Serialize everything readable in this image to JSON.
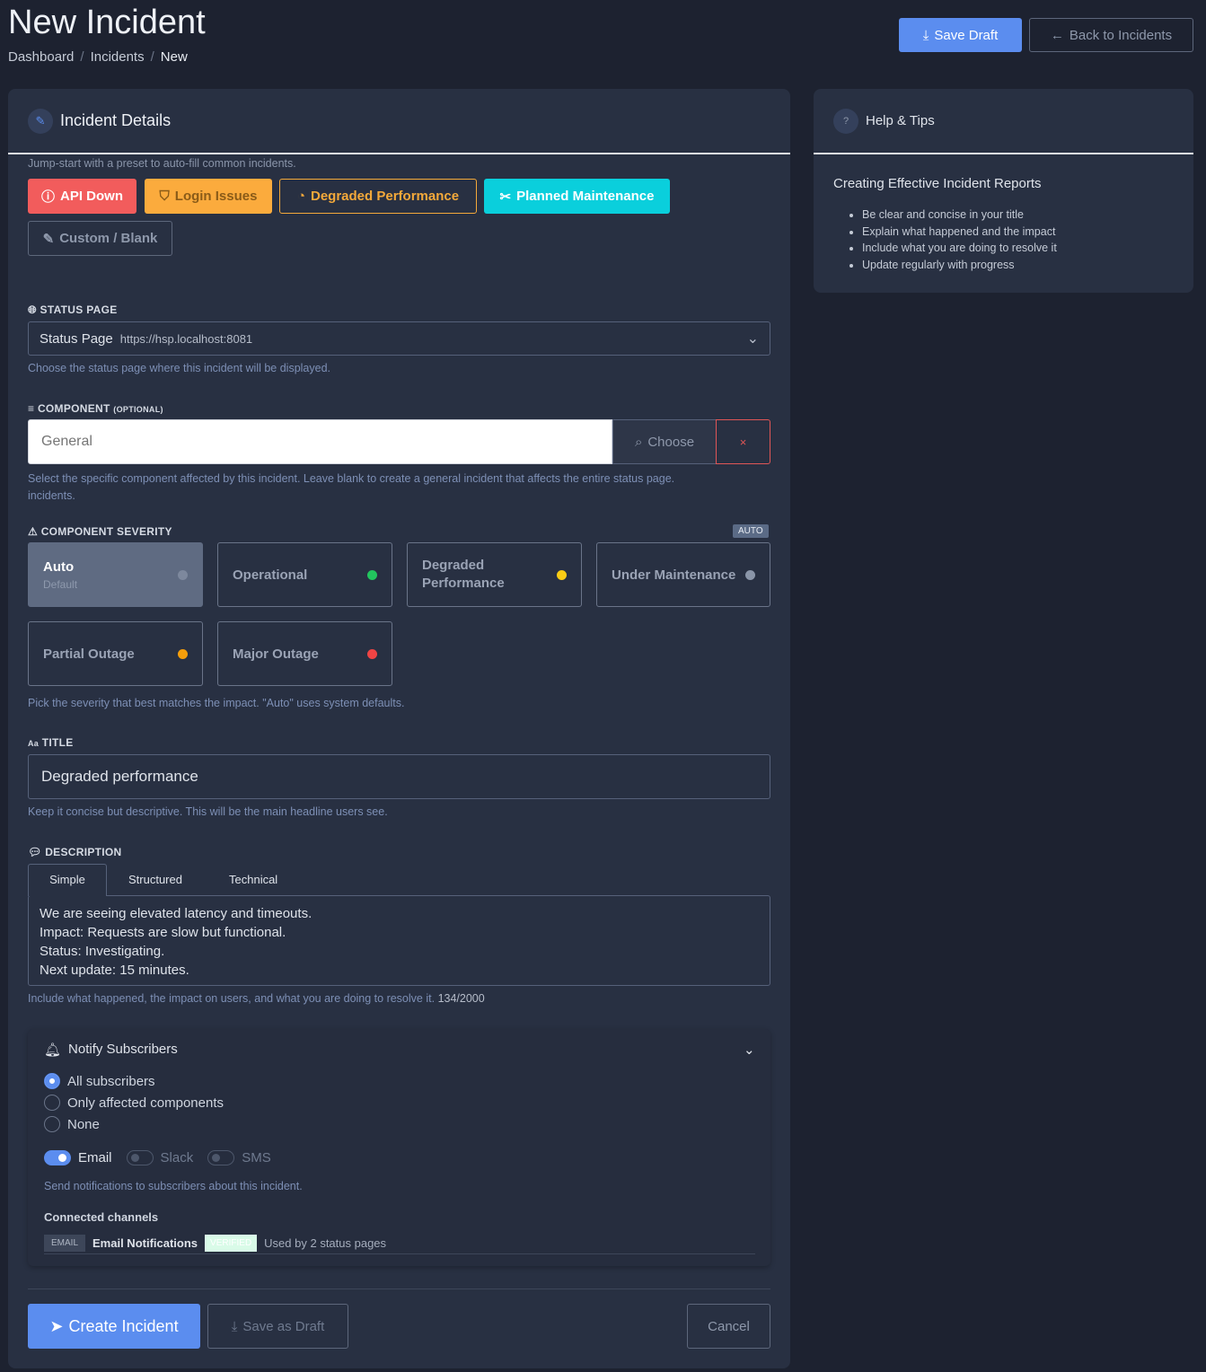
{
  "header": {
    "title": "New Incident",
    "breadcrumb": [
      "Dashboard",
      "Incidents",
      "New"
    ],
    "save_draft": "Save Draft",
    "back": "Back to Incidents"
  },
  "details": {
    "title": "Incident Details",
    "preset_hint": "Jump-start with a preset to auto-fill common incidents.",
    "presets": [
      "API Down",
      "Login Issues",
      "Degraded Performance",
      "Planned Maintenance",
      "Custom / Blank"
    ],
    "status_page": {
      "label": "STATUS PAGE",
      "name": "Status Page",
      "url": "https://hsp.localhost:8081",
      "hint": "Choose the status page where this incident will be displayed."
    },
    "component": {
      "label": "COMPONENT",
      "optional": "(OPTIONAL)",
      "placeholder": "General",
      "choose": "Choose",
      "clear": "×",
      "hint": "Select the specific component affected by this incident. Leave blank to create a general incident that affects the entire status page.",
      "hint2": "incidents."
    },
    "severity": {
      "label": "COMPONENT SEVERITY",
      "badge": "AUTO",
      "auto": "Auto",
      "auto_sub": "Default",
      "options": [
        {
          "label": "Operational",
          "color": "#22c55e"
        },
        {
          "label": "Degraded Performance",
          "color": "#facc15"
        },
        {
          "label": "Under Maintenance",
          "color": "#8a95a8"
        },
        {
          "label": "Partial Outage",
          "color": "#f59e0b"
        },
        {
          "label": "Major Outage",
          "color": "#ef4444"
        }
      ],
      "hint": "Pick the severity that best matches the impact. \"Auto\" uses system defaults."
    },
    "title_field": {
      "label": "TITLE",
      "icon_text": "Aa",
      "value": "Degraded performance",
      "hint": "Keep it concise but descriptive. This will be the main headline users see."
    },
    "description": {
      "label": "DESCRIPTION",
      "tabs": [
        "Simple",
        "Structured",
        "Technical"
      ],
      "lines": [
        "We are seeing elevated latency and timeouts.",
        "Impact: Requests are slow but functional.",
        "Status: Investigating.",
        "Next update: 15 minutes."
      ],
      "hint": "Include what happened, the impact on users, and what you are doing to resolve it.",
      "count": "134/2000"
    },
    "notify": {
      "title": "Notify Subscribers",
      "options": [
        "All subscribers",
        "Only affected components",
        "None"
      ],
      "selected": 0,
      "channels": [
        {
          "label": "Email",
          "on": true
        },
        {
          "label": "Slack",
          "on": false
        },
        {
          "label": "SMS",
          "on": false
        }
      ],
      "hint": "Send notifications to subscribers about this incident.",
      "connected_label": "Connected channels",
      "channel_type": "EMAIL",
      "channel_name": "Email Notifications",
      "verified": "VERIFIED",
      "used_by": "Used by 2 status pages"
    },
    "actions": {
      "create": "Create Incident",
      "save": "Save as Draft",
      "cancel": "Cancel"
    }
  },
  "help": {
    "title": "Help & Tips",
    "subtitle": "Creating Effective Incident Reports",
    "tips": [
      "Be clear and concise in your title",
      "Explain what happened and the impact",
      "Include what you are doing to resolve it",
      "Update regularly with progress"
    ]
  }
}
